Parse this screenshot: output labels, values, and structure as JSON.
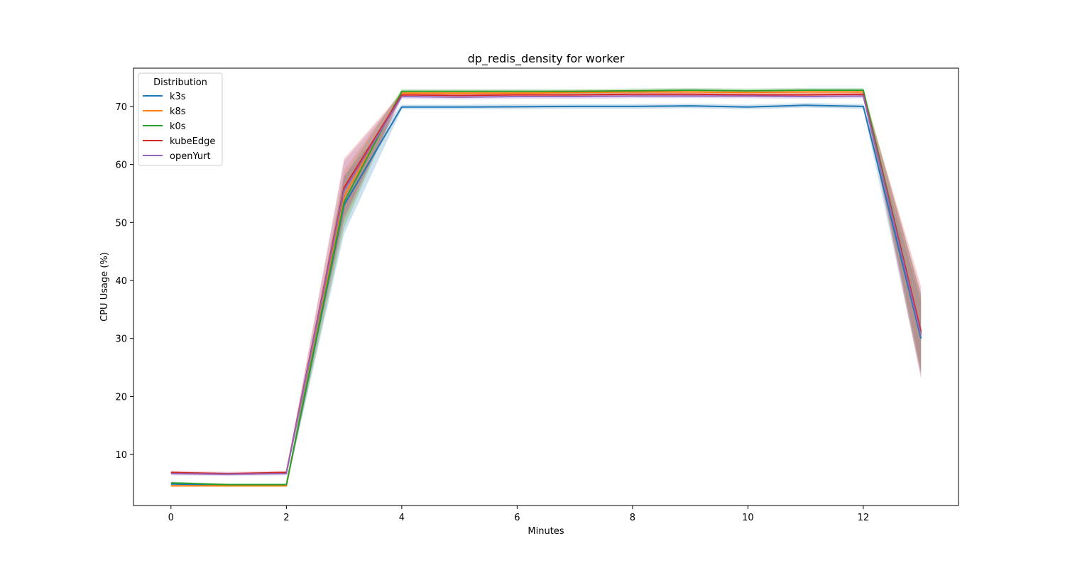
{
  "chart_data": {
    "type": "line",
    "title": "dp_redis_density for worker",
    "xlabel": "Minutes",
    "ylabel": "CPU Usage (%)",
    "xlim": [
      -0.65,
      13.65
    ],
    "ylim": [
      1.2,
      76.6
    ],
    "xticks": [
      0,
      2,
      4,
      6,
      8,
      10,
      12
    ],
    "yticks": [
      10,
      20,
      30,
      40,
      50,
      60,
      70
    ],
    "grid": false,
    "legend": {
      "title": "Distribution",
      "position": "top-left"
    },
    "x": [
      0,
      1,
      2,
      3,
      4,
      5,
      6,
      7,
      8,
      9,
      10,
      11,
      12,
      13
    ],
    "series": [
      {
        "name": "k3s",
        "color": "#1f77b4",
        "values": [
          4.9,
          4.7,
          4.7,
          53.0,
          69.9,
          69.9,
          69.95,
          70.0,
          70.0,
          70.1,
          69.9,
          70.2,
          70.0,
          30.0
        ],
        "lower": [
          4.7,
          4.5,
          4.5,
          48.0,
          69.5,
          69.5,
          69.55,
          69.6,
          69.6,
          69.7,
          69.5,
          69.8,
          69.6,
          23.5
        ],
        "upper": [
          5.1,
          4.9,
          4.9,
          58.0,
          70.3,
          70.3,
          70.35,
          70.4,
          70.4,
          70.5,
          70.3,
          70.6,
          70.4,
          36.5
        ]
      },
      {
        "name": "k8s",
        "color": "#ff7f0e",
        "values": [
          4.6,
          4.6,
          4.6,
          54.5,
          72.3,
          72.3,
          72.3,
          72.4,
          72.5,
          72.5,
          72.4,
          72.5,
          72.5,
          30.8
        ],
        "lower": [
          4.4,
          4.4,
          4.4,
          50.0,
          71.9,
          71.9,
          71.9,
          72.0,
          72.1,
          72.1,
          72.0,
          72.1,
          72.1,
          24.0
        ],
        "upper": [
          4.8,
          4.8,
          4.8,
          59.0,
          72.7,
          72.7,
          72.7,
          72.8,
          72.9,
          72.9,
          72.8,
          72.9,
          72.9,
          37.5
        ]
      },
      {
        "name": "k0s",
        "color": "#2ca02c",
        "values": [
          5.1,
          4.8,
          4.8,
          53.5,
          72.6,
          72.6,
          72.6,
          72.6,
          72.7,
          72.8,
          72.7,
          72.8,
          72.8,
          31.0
        ],
        "lower": [
          4.9,
          4.6,
          4.6,
          49.0,
          72.2,
          72.2,
          72.2,
          72.2,
          72.3,
          72.4,
          72.3,
          72.4,
          72.4,
          24.5
        ],
        "upper": [
          5.3,
          5.0,
          5.0,
          58.0,
          73.0,
          73.0,
          73.0,
          73.0,
          73.1,
          73.2,
          73.1,
          73.2,
          73.2,
          37.5
        ]
      },
      {
        "name": "kubeEdge",
        "color": "#d62728",
        "values": [
          6.9,
          6.7,
          6.9,
          56.0,
          72.0,
          71.9,
          72.0,
          72.0,
          72.1,
          72.1,
          72.0,
          72.0,
          72.1,
          31.2
        ],
        "lower": [
          6.6,
          6.4,
          6.6,
          51.0,
          71.6,
          71.5,
          71.6,
          71.6,
          71.7,
          71.7,
          71.6,
          71.6,
          71.7,
          23.0
        ],
        "upper": [
          7.2,
          7.0,
          7.2,
          61.0,
          72.4,
          72.3,
          72.4,
          72.4,
          72.5,
          72.5,
          72.4,
          72.4,
          72.5,
          39.0
        ]
      },
      {
        "name": "openYurt",
        "color": "#9467bd",
        "values": [
          6.7,
          6.6,
          6.7,
          55.5,
          71.7,
          71.6,
          71.7,
          71.7,
          71.8,
          71.8,
          71.8,
          71.7,
          71.8,
          30.5
        ],
        "lower": [
          6.4,
          6.3,
          6.4,
          50.5,
          71.3,
          71.2,
          71.3,
          71.3,
          71.4,
          71.4,
          71.4,
          71.3,
          71.4,
          24.0
        ],
        "upper": [
          7.0,
          6.9,
          7.0,
          60.5,
          72.1,
          72.0,
          72.1,
          72.1,
          72.2,
          72.2,
          72.2,
          72.1,
          72.2,
          38.0
        ]
      }
    ]
  }
}
